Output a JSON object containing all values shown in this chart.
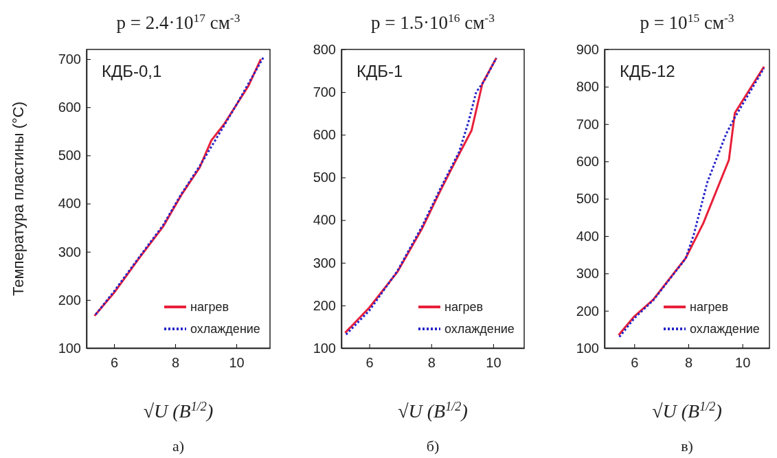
{
  "chart_data": [
    {
      "type": "line",
      "title": "p = 2.4·10$^{17}$ см$^{-3}$",
      "xlabel": "√U (B$^{1/2}$)",
      "ylabel": "Температура пластины (°C)",
      "annotations": [
        "КДБ-0,1",
        "а)"
      ],
      "xlim": [
        5.1,
        11.1
      ],
      "ylim": [
        100,
        720
      ],
      "xticks": [
        6,
        8,
        10
      ],
      "yticks": [
        100,
        200,
        300,
        400,
        500,
        600,
        700
      ],
      "grid": false,
      "legend": "bottom right",
      "series": [
        {
          "name": "нагрев",
          "color": "#e8203a",
          "line_style": "solid",
          "x": [
            5.36,
            6.0,
            6.8,
            7.6,
            8.2,
            8.8,
            9.18,
            9.6,
            10.0,
            10.4,
            10.8
          ],
          "values": [
            167,
            215,
            285,
            352,
            418,
            475,
            531,
            565,
            605,
            645,
            700
          ]
        },
        {
          "name": "охлаждение",
          "color": "#2424c8",
          "line_style": "dotted",
          "x": [
            5.4,
            6.0,
            6.8,
            7.6,
            8.2,
            8.8,
            9.2,
            9.6,
            10.0,
            10.4,
            10.9
          ],
          "values": [
            170,
            218,
            287,
            355,
            420,
            478,
            520,
            562,
            605,
            650,
            705
          ]
        }
      ]
    },
    {
      "type": "line",
      "title": "p = 1.5·10$^{16}$ см$^{-3}$",
      "xlabel": "√U (B$^{1/2}$)",
      "annotations": [
        "КДБ-1",
        "б)"
      ],
      "xlim": [
        5.1,
        11.0
      ],
      "ylim": [
        100,
        800
      ],
      "xticks": [
        6,
        8,
        10
      ],
      "yticks": [
        100,
        200,
        300,
        400,
        500,
        600,
        700,
        800
      ],
      "grid": false,
      "legend": "bottom right",
      "series": [
        {
          "name": "нагрев",
          "color": "#e8203a",
          "line_style": "solid",
          "x": [
            5.22,
            6.0,
            6.9,
            7.7,
            8.3,
            8.8,
            9.3,
            9.65,
            10.1
          ],
          "values": [
            136,
            195,
            278,
            380,
            470,
            541,
            610,
            720,
            780
          ]
        },
        {
          "name": "охлаждение",
          "color": "#2424c8",
          "line_style": "dotted",
          "x": [
            5.25,
            6.0,
            6.9,
            7.7,
            8.3,
            8.9,
            9.2,
            9.45,
            9.7,
            10.1
          ],
          "values": [
            132,
            188,
            280,
            385,
            475,
            560,
            630,
            700,
            725,
            780
          ]
        }
      ]
    },
    {
      "type": "line",
      "title": "p = 10$^{15}$ см$^{-3}$",
      "xlabel": "√U (B$^{1/2}$)",
      "annotations": [
        "КДБ-12",
        "в)"
      ],
      "xlim": [
        4.9,
        11.0
      ],
      "ylim": [
        100,
        900
      ],
      "xticks": [
        6,
        8,
        10
      ],
      "yticks": [
        100,
        200,
        300,
        400,
        500,
        600,
        700,
        800,
        900
      ],
      "grid": false,
      "legend": "bottom right",
      "series": [
        {
          "name": "нагрев",
          "color": "#e8203a",
          "line_style": "solid",
          "x": [
            5.42,
            6.0,
            6.7,
            7.9,
            8.55,
            9.5,
            9.72,
            10.8
          ],
          "values": [
            135,
            185,
            230,
            341,
            434,
            604,
            730,
            854
          ]
        },
        {
          "name": "охлаждение",
          "color": "#2424c8",
          "line_style": "dotted",
          "x": [
            5.45,
            6.0,
            6.7,
            7.9,
            8.2,
            8.7,
            9.4,
            9.72,
            10.8
          ],
          "values": [
            130,
            180,
            228,
            340,
            404,
            544,
            674,
            718,
            850
          ]
        }
      ]
    }
  ]
}
